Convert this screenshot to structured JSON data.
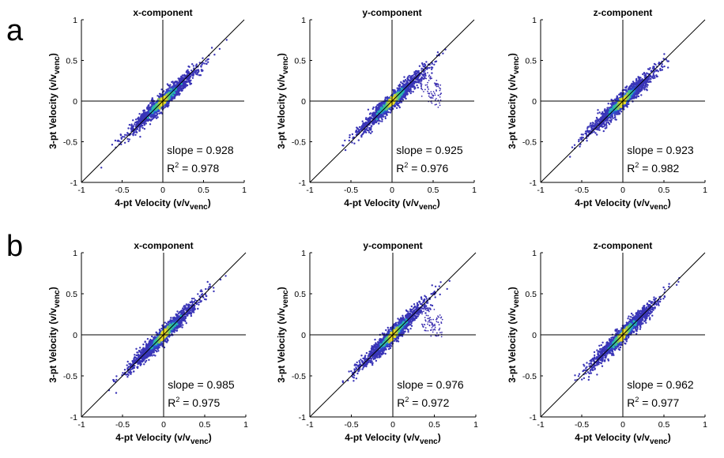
{
  "figure": {
    "row_labels": [
      "a",
      "b"
    ]
  },
  "colors": {
    "background": "#ffffff",
    "axis": "#000000",
    "density_low": "#3b0f8f",
    "density_mid": "#1f9bd0",
    "density_high": "#ffe51c"
  },
  "chart_data": [
    {
      "type": "scatter",
      "row": "a",
      "title": "x-component",
      "xlabel": "4-pt Velocity (v/v",
      "xlabel_sub": "venc",
      "xlabel_end": ")",
      "ylabel": "3-pt Velocity (v/v",
      "ylabel_sub": "venc",
      "ylabel_end": ")",
      "xlim": [
        -1,
        1
      ],
      "ylim": [
        -1,
        1
      ],
      "xticks": [
        "-1",
        "-0.5",
        "0",
        "0.5",
        "1"
      ],
      "yticks": [
        "-1",
        "-0.5",
        "0",
        "0.5",
        "1"
      ],
      "slope": 0.928,
      "r2": 0.978,
      "slope_text": "slope = 0.928",
      "r2_label": "R",
      "r2_sup": "2",
      "r2_value": " = 0.978",
      "identity_line": true,
      "x_spread": [
        -0.8,
        0.8
      ],
      "outlier_lobe": false
    },
    {
      "type": "scatter",
      "row": "a",
      "title": "y-component",
      "xlabel": "4-pt Velocity (v/v",
      "xlabel_sub": "venc",
      "xlabel_end": ")",
      "ylabel": "3-pt Velocity (v/v",
      "ylabel_sub": "venc",
      "ylabel_end": ")",
      "xlim": [
        -1,
        1
      ],
      "ylim": [
        -1,
        1
      ],
      "xticks": [
        "-1",
        "-0.5",
        "0",
        "0.5",
        "1"
      ],
      "yticks": [
        "-1",
        "-0.5",
        "0",
        "0.5",
        "1"
      ],
      "slope": 0.925,
      "r2": 0.976,
      "slope_text": "slope = 0.925",
      "r2_label": "R",
      "r2_sup": "2",
      "r2_value": " = 0.976",
      "identity_line": true,
      "x_spread": [
        -0.8,
        0.8
      ],
      "outlier_lobe": true
    },
    {
      "type": "scatter",
      "row": "a",
      "title": "z-component",
      "xlabel": "4-pt Velocity (v/v",
      "xlabel_sub": "venc",
      "xlabel_end": ")",
      "ylabel": "3-pt Velocity (v/v",
      "ylabel_sub": "venc",
      "ylabel_end": ")",
      "xlim": [
        -1,
        1
      ],
      "ylim": [
        -1,
        1
      ],
      "xticks": [
        "-1",
        "-0.5",
        "0",
        "0.5",
        "1"
      ],
      "yticks": [
        "-1",
        "-0.5",
        "0",
        "0.5",
        "1"
      ],
      "slope": 0.923,
      "r2": 0.982,
      "slope_text": "slope = 0.923",
      "r2_label": "R",
      "r2_sup": "2",
      "r2_value": " = 0.982",
      "identity_line": true,
      "x_spread": [
        -0.7,
        0.75
      ],
      "outlier_lobe": false
    },
    {
      "type": "scatter",
      "row": "b",
      "title": "x-component",
      "xlabel": "4-pt Velocity (v/v",
      "xlabel_sub": "venc",
      "xlabel_end": ")",
      "ylabel": "3-pt Velocity (v/v",
      "ylabel_sub": "venc",
      "ylabel_end": ")",
      "xlim": [
        -1,
        1
      ],
      "ylim": [
        -1,
        1
      ],
      "xticks": [
        "-1",
        "-0.5",
        "0",
        "0.5",
        "1"
      ],
      "yticks": [
        "-1",
        "-0.5",
        "0",
        "0.5",
        "1"
      ],
      "slope": 0.985,
      "r2": 0.975,
      "slope_text": "slope = 0.985",
      "r2_label": "R",
      "r2_sup": "2",
      "r2_value": " = 0.975",
      "identity_line": true,
      "x_spread": [
        -0.8,
        0.8
      ],
      "outlier_lobe": false
    },
    {
      "type": "scatter",
      "row": "b",
      "title": "y-component",
      "xlabel": "4-pt Velocity (v/v",
      "xlabel_sub": "venc",
      "xlabel_end": ")",
      "ylabel": "3-pt Velocity (v/v",
      "ylabel_sub": "venc",
      "ylabel_end": ")",
      "xlim": [
        -1,
        1
      ],
      "ylim": [
        -1,
        1
      ],
      "xticks": [
        "-1",
        "-0.5",
        "0",
        "0.5",
        "1"
      ],
      "yticks": [
        "-1",
        "-0.5",
        "0",
        "0.5",
        "1"
      ],
      "slope": 0.976,
      "r2": 0.972,
      "slope_text": "slope = 0.976",
      "r2_label": "R",
      "r2_sup": "2",
      "r2_value": " = 0.972",
      "identity_line": true,
      "x_spread": [
        -0.8,
        0.8
      ],
      "outlier_lobe": true
    },
    {
      "type": "scatter",
      "row": "b",
      "title": "z-component",
      "xlabel": "4-pt Velocity (v/v",
      "xlabel_sub": "venc",
      "xlabel_end": ")",
      "ylabel": "3-pt Velocity (v/v",
      "ylabel_sub": "venc",
      "ylabel_end": ")",
      "xlim": [
        -1,
        1
      ],
      "ylim": [
        -1,
        1
      ],
      "xticks": [
        "-1",
        "-0.5",
        "0",
        "0.5",
        "1"
      ],
      "yticks": [
        "-1",
        "-0.5",
        "0",
        "0.5",
        "1"
      ],
      "slope": 0.962,
      "r2": 0.977,
      "slope_text": "slope = 0.962",
      "r2_label": "R",
      "r2_sup": "2",
      "r2_value": " = 0.977",
      "identity_line": true,
      "x_spread": [
        -0.75,
        0.8
      ],
      "outlier_lobe": false
    }
  ]
}
